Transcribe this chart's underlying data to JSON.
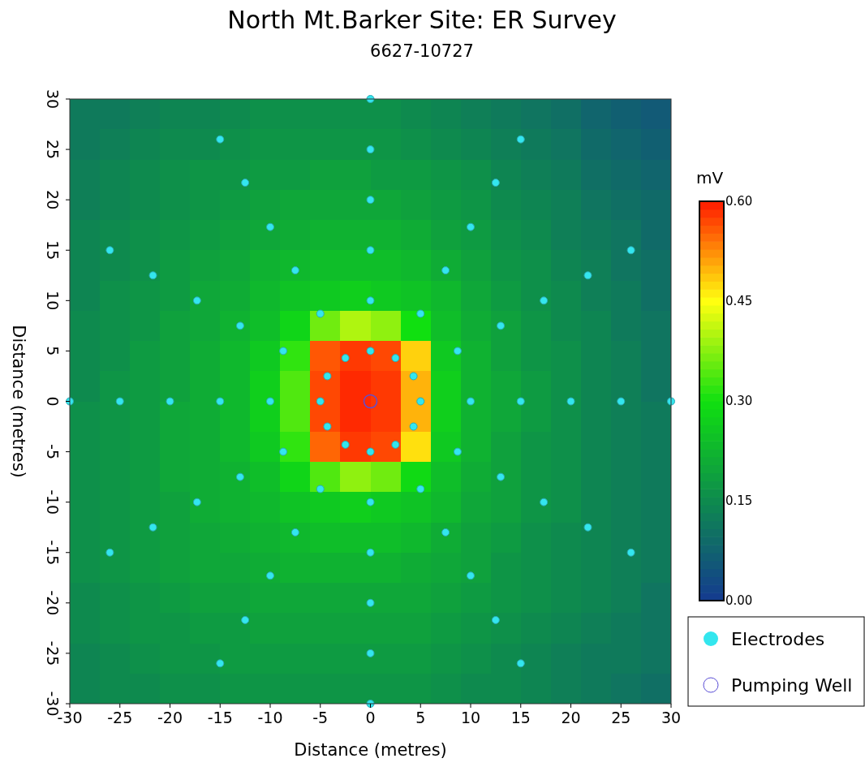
{
  "chart_data": {
    "type": "heatmap",
    "title": "North Mt.Barker Site: ER Survey",
    "subtitle": "6627-10727",
    "xlabel": "Distance (metres)",
    "ylabel": "Distance (metres)",
    "clabel": "mV",
    "xlim": [
      -30,
      30
    ],
    "ylim": [
      -30,
      30
    ],
    "xticks": [
      -30,
      -25,
      -20,
      -15,
      -10,
      -5,
      0,
      5,
      10,
      15,
      20,
      25,
      30
    ],
    "yticks": [
      -30,
      -25,
      -20,
      -15,
      -10,
      -5,
      0,
      5,
      10,
      15,
      20,
      25,
      30
    ],
    "clim": [
      0,
      0.6
    ],
    "cticks": [
      {
        "value": 0,
        "label": "0.00"
      },
      {
        "value": 0.15,
        "label": "0.15"
      },
      {
        "value": 0.3,
        "label": "0.30"
      },
      {
        "value": 0.45,
        "label": "0.45"
      },
      {
        "value": 0.6,
        "label": "0.60"
      }
    ],
    "x": [
      -28.5,
      -25.5,
      -22.5,
      -19.5,
      -16.5,
      -13.5,
      -10.5,
      -7.5,
      -4.5,
      -1.5,
      1.5,
      4.5,
      7.5,
      10.5,
      13.5,
      16.5,
      19.5,
      22.5,
      25.5,
      28.5
    ],
    "y": [
      28.5,
      25.5,
      22.5,
      19.5,
      16.5,
      13.5,
      10.5,
      7.5,
      4.5,
      1.5,
      -1.5,
      -4.5,
      -7.5,
      -10.5,
      -13.5,
      -16.5,
      -19.5,
      -22.5,
      -25.5,
      -28.5
    ],
    "cells": [
      [
        0.12,
        0.12,
        0.13,
        0.14,
        0.14,
        0.15,
        0.16,
        0.16,
        0.16,
        0.16,
        0.16,
        0.15,
        0.14,
        0.13,
        0.12,
        0.11,
        0.1,
        0.08,
        0.07,
        0.06
      ],
      [
        0.12,
        0.13,
        0.14,
        0.15,
        0.15,
        0.16,
        0.17,
        0.17,
        0.17,
        0.17,
        0.17,
        0.16,
        0.15,
        0.14,
        0.13,
        0.12,
        0.11,
        0.09,
        0.08,
        0.07
      ],
      [
        0.13,
        0.14,
        0.15,
        0.16,
        0.17,
        0.17,
        0.18,
        0.18,
        0.19,
        0.19,
        0.18,
        0.18,
        0.17,
        0.16,
        0.14,
        0.13,
        0.12,
        0.1,
        0.09,
        0.08
      ],
      [
        0.13,
        0.14,
        0.15,
        0.16,
        0.17,
        0.18,
        0.19,
        0.2,
        0.2,
        0.2,
        0.2,
        0.19,
        0.18,
        0.17,
        0.15,
        0.14,
        0.13,
        0.11,
        0.1,
        0.09
      ],
      [
        0.14,
        0.15,
        0.16,
        0.17,
        0.18,
        0.19,
        0.2,
        0.21,
        0.22,
        0.22,
        0.22,
        0.21,
        0.19,
        0.18,
        0.16,
        0.15,
        0.13,
        0.12,
        0.11,
        0.09
      ],
      [
        0.14,
        0.15,
        0.16,
        0.18,
        0.19,
        0.2,
        0.22,
        0.23,
        0.24,
        0.24,
        0.24,
        0.23,
        0.21,
        0.19,
        0.17,
        0.16,
        0.14,
        0.13,
        0.11,
        0.1
      ],
      [
        0.14,
        0.16,
        0.17,
        0.18,
        0.2,
        0.21,
        0.23,
        0.25,
        0.26,
        0.27,
        0.26,
        0.25,
        0.23,
        0.2,
        0.18,
        0.16,
        0.15,
        0.13,
        0.12,
        0.1
      ],
      [
        0.15,
        0.16,
        0.17,
        0.19,
        0.2,
        0.22,
        0.24,
        0.28,
        0.36,
        0.4,
        0.38,
        0.3,
        0.24,
        0.21,
        0.19,
        0.17,
        0.15,
        0.14,
        0.12,
        0.11
      ],
      [
        0.15,
        0.16,
        0.18,
        0.19,
        0.21,
        0.23,
        0.26,
        0.32,
        0.56,
        0.58,
        0.57,
        0.48,
        0.26,
        0.22,
        0.19,
        0.17,
        0.16,
        0.14,
        0.13,
        0.11
      ],
      [
        0.15,
        0.17,
        0.18,
        0.19,
        0.21,
        0.23,
        0.27,
        0.34,
        0.57,
        0.59,
        0.58,
        0.5,
        0.27,
        0.22,
        0.2,
        0.18,
        0.16,
        0.14,
        0.13,
        0.11
      ],
      [
        0.16,
        0.17,
        0.18,
        0.2,
        0.21,
        0.23,
        0.27,
        0.34,
        0.57,
        0.59,
        0.58,
        0.5,
        0.27,
        0.22,
        0.2,
        0.18,
        0.16,
        0.14,
        0.13,
        0.12
      ],
      [
        0.16,
        0.17,
        0.18,
        0.2,
        0.21,
        0.23,
        0.26,
        0.32,
        0.55,
        0.58,
        0.57,
        0.47,
        0.26,
        0.22,
        0.19,
        0.17,
        0.16,
        0.14,
        0.13,
        0.12
      ],
      [
        0.16,
        0.17,
        0.18,
        0.2,
        0.21,
        0.22,
        0.24,
        0.28,
        0.34,
        0.38,
        0.36,
        0.29,
        0.24,
        0.21,
        0.19,
        0.17,
        0.16,
        0.14,
        0.13,
        0.12
      ],
      [
        0.16,
        0.17,
        0.18,
        0.19,
        0.21,
        0.22,
        0.23,
        0.25,
        0.26,
        0.27,
        0.26,
        0.25,
        0.23,
        0.2,
        0.19,
        0.17,
        0.16,
        0.14,
        0.13,
        0.12
      ],
      [
        0.16,
        0.17,
        0.18,
        0.19,
        0.2,
        0.21,
        0.22,
        0.23,
        0.24,
        0.24,
        0.24,
        0.23,
        0.21,
        0.19,
        0.18,
        0.16,
        0.15,
        0.14,
        0.13,
        0.12
      ],
      [
        0.16,
        0.17,
        0.18,
        0.19,
        0.2,
        0.2,
        0.21,
        0.22,
        0.22,
        0.22,
        0.22,
        0.21,
        0.2,
        0.19,
        0.17,
        0.16,
        0.15,
        0.14,
        0.13,
        0.12
      ],
      [
        0.15,
        0.16,
        0.17,
        0.18,
        0.19,
        0.19,
        0.2,
        0.2,
        0.2,
        0.2,
        0.2,
        0.2,
        0.19,
        0.18,
        0.17,
        0.16,
        0.15,
        0.14,
        0.13,
        0.11
      ],
      [
        0.15,
        0.16,
        0.17,
        0.17,
        0.18,
        0.18,
        0.19,
        0.19,
        0.19,
        0.19,
        0.19,
        0.19,
        0.18,
        0.17,
        0.16,
        0.15,
        0.14,
        0.13,
        0.12,
        0.11
      ],
      [
        0.14,
        0.15,
        0.16,
        0.17,
        0.17,
        0.18,
        0.18,
        0.18,
        0.18,
        0.18,
        0.18,
        0.18,
        0.17,
        0.16,
        0.15,
        0.14,
        0.13,
        0.12,
        0.12,
        0.11
      ],
      [
        0.14,
        0.15,
        0.15,
        0.16,
        0.16,
        0.17,
        0.17,
        0.17,
        0.17,
        0.17,
        0.17,
        0.17,
        0.16,
        0.15,
        0.15,
        0.14,
        0.13,
        0.12,
        0.11,
        0.1
      ]
    ],
    "series": [
      {
        "name": "Electrodes",
        "type": "scatter",
        "color": "#33e6ee",
        "marker": "circle",
        "x": [
          5,
          4.3,
          2.5,
          0,
          -2.5,
          -4.3,
          -5,
          -4.3,
          -2.5,
          0,
          2.5,
          4.3,
          10,
          8.7,
          5,
          0,
          -5,
          -8.7,
          -10,
          -8.7,
          -5,
          0,
          5,
          8.7,
          15,
          13,
          7.5,
          0,
          -7.5,
          -13,
          -15,
          -13,
          -7.5,
          0,
          7.5,
          13,
          20,
          17.3,
          10,
          0,
          -10,
          -17.3,
          -20,
          -17.3,
          -10,
          0,
          10,
          17.3,
          25,
          21.7,
          12.5,
          0,
          -12.5,
          -21.7,
          -25,
          -21.7,
          -12.5,
          0,
          12.5,
          21.7,
          30,
          26,
          15,
          0,
          -15,
          -26,
          -30,
          -26,
          -15,
          0,
          15,
          26
        ],
        "values": [
          0,
          2.5,
          4.3,
          5,
          4.3,
          2.5,
          0,
          -2.5,
          -4.3,
          -5,
          -4.3,
          -2.5,
          0,
          5,
          8.7,
          10,
          8.7,
          5,
          0,
          -5,
          -8.7,
          -10,
          -8.7,
          -5,
          0,
          7.5,
          13,
          15,
          13,
          7.5,
          0,
          -7.5,
          -13,
          -15,
          -13,
          -7.5,
          0,
          10,
          17.3,
          20,
          17.3,
          10,
          0,
          -10,
          -17.3,
          -20,
          -17.3,
          -10,
          0,
          12.5,
          21.7,
          25,
          21.7,
          12.5,
          0,
          -12.5,
          -21.7,
          -25,
          -21.7,
          -12.5,
          0,
          15,
          26,
          30,
          26,
          15,
          0,
          -15,
          -26,
          -30,
          -26,
          -15
        ]
      },
      {
        "name": "Pumping Well",
        "type": "scatter",
        "color": "#5b4fd6",
        "marker": "open_circle",
        "x": [
          0
        ],
        "values": [
          0
        ]
      }
    ],
    "legend": "right"
  }
}
